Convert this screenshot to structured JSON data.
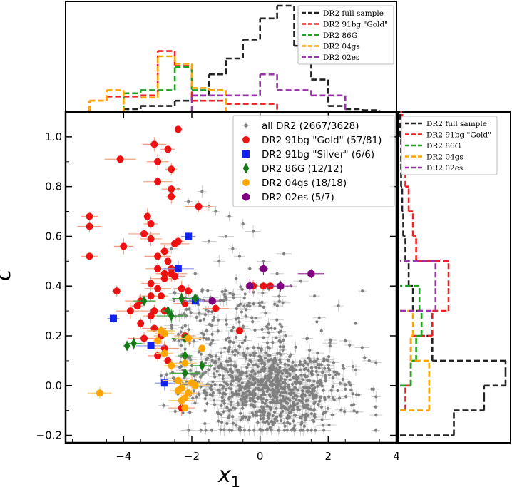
{
  "chart_data": [
    {
      "type": "scatter",
      "title": "",
      "xlabel": "x",
      "xlabel_sub": "1",
      "ylabel": "c",
      "xlim": [
        -5.7,
        4.0
      ],
      "ylim": [
        -0.23,
        1.1
      ],
      "xticks": [
        -4,
        -2,
        0,
        2,
        4
      ],
      "xtick_labels": [
        "−4",
        "−2",
        "0",
        "2",
        "4"
      ],
      "yticks": [
        -0.2,
        0.0,
        0.2,
        0.4,
        0.6,
        0.8,
        1.0
      ],
      "ytick_labels": [
        "−0.2",
        "0.0",
        "0.2",
        "0.4",
        "0.6",
        "0.8",
        "1.0"
      ],
      "legend_position": "top-right",
      "series": [
        {
          "name": "all DR2 (2667/3628)",
          "color": "#808080",
          "errcolor": "#c8c8c8",
          "marker": "dot",
          "cloud": {
            "n": 1100,
            "mean": [
              0.4,
              -0.02
            ],
            "sd": [
              1.1,
              0.09
            ]
          },
          "points": [
            [
              -2.1,
              0.74
            ],
            [
              -1.7,
              0.78
            ],
            [
              -1.5,
              0.72
            ],
            [
              -1.3,
              0.7
            ],
            [
              -2.4,
              0.79
            ],
            [
              -0.9,
              0.68
            ],
            [
              -0.5,
              0.65
            ],
            [
              -1.0,
              0.6
            ],
            [
              -0.2,
              0.62
            ],
            [
              -0.8,
              0.55
            ],
            [
              -1.5,
              0.58
            ],
            [
              -0.6,
              0.52
            ],
            [
              0.1,
              0.5
            ],
            [
              -0.3,
              0.47
            ],
            [
              -1.2,
              0.5
            ],
            [
              0.5,
              0.45
            ],
            [
              0.9,
              0.4
            ],
            [
              1.2,
              0.42
            ],
            [
              -0.1,
              0.4
            ],
            [
              1.6,
              0.36
            ],
            [
              2.3,
              0.32
            ],
            [
              3.0,
              0.38
            ],
            [
              2.8,
              0.25
            ],
            [
              1.8,
              0.22
            ],
            [
              2.5,
              0.18
            ],
            [
              3.2,
              0.1
            ],
            [
              -0.7,
              0.43
            ],
            [
              0.7,
              0.53
            ],
            [
              -1.9,
              0.45
            ],
            [
              -2.6,
              0.55
            ]
          ]
        },
        {
          "name": "DR2 91bg \"Gold\" (57/81)",
          "color": "#ee1111",
          "marker": "circle",
          "points": [
            [
              -2.4,
              1.03
            ],
            [
              -3.1,
              0.97
            ],
            [
              -2.7,
              0.95
            ],
            [
              -4.1,
              0.91
            ],
            [
              -3.0,
              0.9
            ],
            [
              -2.6,
              0.87
            ],
            [
              -3.0,
              0.82
            ],
            [
              -2.6,
              0.79
            ],
            [
              -2.6,
              0.76
            ],
            [
              -1.8,
              0.72
            ],
            [
              -5.0,
              0.68
            ],
            [
              -3.3,
              0.68
            ],
            [
              -5.0,
              0.64
            ],
            [
              -3.2,
              0.65
            ],
            [
              -3.4,
              0.61
            ],
            [
              -3.2,
              0.59
            ],
            [
              -2.4,
              0.58
            ],
            [
              -2.5,
              0.57
            ],
            [
              -4.0,
              0.56
            ],
            [
              -2.8,
              0.54
            ],
            [
              -3.0,
              0.52
            ],
            [
              -5.0,
              0.52
            ],
            [
              -2.7,
              0.5
            ],
            [
              -3.0,
              0.47
            ],
            [
              -2.6,
              0.47
            ],
            [
              -2.6,
              0.45
            ],
            [
              -2.5,
              0.44
            ],
            [
              -2.8,
              0.45
            ],
            [
              -2.8,
              0.43
            ],
            [
              -3.2,
              0.41
            ],
            [
              -4.2,
              0.38
            ],
            [
              -3.0,
              0.39
            ],
            [
              -2.3,
              0.39
            ],
            [
              -2.1,
              0.38
            ],
            [
              -3.2,
              0.36
            ],
            [
              -2.9,
              0.36
            ],
            [
              -3.5,
              0.34
            ],
            [
              -2.2,
              0.33
            ],
            [
              -3.6,
              0.32
            ],
            [
              -3.8,
              0.3
            ],
            [
              -3.1,
              0.3
            ],
            [
              -2.8,
              0.3
            ],
            [
              -1.3,
              0.31
            ],
            [
              -3.2,
              0.28
            ],
            [
              -3.5,
              0.25
            ],
            [
              -3.1,
              0.23
            ],
            [
              -2.9,
              0.2
            ],
            [
              -3.4,
              0.19
            ],
            [
              -2.2,
              0.2
            ],
            [
              -0.6,
              0.22
            ],
            [
              -2.8,
              0.15
            ],
            [
              -3.0,
              0.12
            ],
            [
              -2.7,
              0.1
            ],
            [
              -2.3,
              -0.09
            ],
            [
              -0.2,
              0.4
            ],
            [
              0.1,
              0.4
            ],
            [
              0.3,
              0.4
            ]
          ]
        },
        {
          "name": "DR2 91bg \"Silver\" (6/6)",
          "color": "#1122ee",
          "marker": "square",
          "points": [
            [
              -2.1,
              0.6
            ],
            [
              -2.4,
              0.47
            ],
            [
              -1.9,
              0.34
            ],
            [
              -4.3,
              0.27
            ],
            [
              -3.2,
              0.16
            ],
            [
              -2.8,
              0.01
            ]
          ]
        },
        {
          "name": "DR2 86G (12/12)",
          "color": "#157a15",
          "marker": "diamond",
          "points": [
            [
              -3.4,
              0.34
            ],
            [
              -2.7,
              0.3
            ],
            [
              -2.6,
              0.28
            ],
            [
              -2.3,
              0.35
            ],
            [
              -1.9,
              0.35
            ],
            [
              -2.2,
              0.19
            ],
            [
              -3.7,
              0.17
            ],
            [
              -3.9,
              0.16
            ],
            [
              -2.9,
              0.22
            ],
            [
              -2.2,
              0.12
            ],
            [
              -2.2,
              0.05
            ],
            [
              -1.7,
              0.08
            ]
          ]
        },
        {
          "name": "DR2 04gs (18/18)",
          "color": "#ffa500",
          "marker": "circle",
          "points": [
            [
              -2.9,
              0.22
            ],
            [
              -2.8,
              0.21
            ],
            [
              -3.0,
              0.18
            ],
            [
              -2.1,
              0.19
            ],
            [
              -2.8,
              0.13
            ],
            [
              -1.7,
              0.15
            ],
            [
              -2.2,
              0.09
            ],
            [
              -2.6,
              0.08
            ],
            [
              -2.4,
              0.02
            ],
            [
              -2.0,
              0.01
            ],
            [
              -2.3,
              -0.01
            ],
            [
              -1.9,
              0.0
            ],
            [
              -2.1,
              -0.03
            ],
            [
              -2.2,
              -0.05
            ],
            [
              -2.3,
              -0.06
            ],
            [
              -2.4,
              -0.02
            ],
            [
              -2.2,
              -0.09
            ],
            [
              -4.7,
              -0.03
            ]
          ]
        },
        {
          "name": "DR2 02es (5/7)",
          "color": "#800080",
          "marker": "hexagon",
          "points": [
            [
              0.1,
              0.47
            ],
            [
              1.5,
              0.45
            ],
            [
              -1.4,
              0.34
            ],
            [
              -0.3,
              0.4
            ],
            [
              0.6,
              0.4
            ]
          ]
        }
      ]
    },
    {
      "type": "histogram",
      "orientation": "vertical",
      "panel": "top (distribution of x1)",
      "bin_width": 0.5,
      "xlim": [
        -5.7,
        4.0
      ],
      "series": [
        {
          "name": "DR2 full sample",
          "color": "#222222",
          "bins": [
            -4.0,
            -3.5,
            -3.0,
            -2.5,
            -2.0,
            -1.5,
            -1.0,
            -0.5,
            0.0,
            0.5,
            1.0,
            1.5,
            2.0,
            2.5,
            3.0
          ],
          "heights": [
            0.02,
            0.05,
            0.05,
            0.1,
            0.15,
            0.35,
            0.5,
            0.68,
            0.88,
            1.0,
            0.62,
            0.3,
            0.05,
            0.02,
            0.01
          ]
        },
        {
          "name": "DR2 91bg \"Gold\"",
          "color": "#ee2222",
          "bins": [
            -5.0,
            -4.5,
            -4.0,
            -3.5,
            -3.0,
            -2.5,
            -2.0,
            -1.5,
            -1.0,
            -0.5,
            0.0
          ],
          "heights": [
            0.1,
            0.14,
            0.14,
            0.15,
            0.57,
            0.43,
            0.1,
            0.1,
            0.07,
            0.07,
            0.07
          ]
        },
        {
          "name": "DR2 86G",
          "color": "#22a022",
          "bins": [
            -4.0,
            -3.5,
            -3.0,
            -2.5,
            -2.0,
            -1.5
          ],
          "heights": [
            0.17,
            0.2,
            0.2,
            0.42,
            0.2,
            0.2
          ]
        },
        {
          "name": "DR2 04gs",
          "color": "#ffa500",
          "bins": [
            -5.0,
            -4.5,
            -3.5,
            -3.0,
            -2.5,
            -2.0,
            -1.5
          ],
          "heights": [
            0.1,
            0.2,
            0.13,
            0.52,
            0.45,
            0.22,
            0.2
          ]
        },
        {
          "name": "DR2 02es",
          "color": "#9933aa",
          "bins": [
            -2.0,
            -1.5,
            -1.0,
            -0.5,
            0.0,
            0.5,
            1.0,
            1.5,
            2.0
          ],
          "heights": [
            0.15,
            0.15,
            0.15,
            0.15,
            0.35,
            0.2,
            0.2,
            0.15,
            0.15
          ]
        }
      ]
    },
    {
      "type": "histogram",
      "orientation": "horizontal",
      "panel": "right (distribution of c)",
      "bin_width": 0.1,
      "ylim": [
        -0.23,
        1.1
      ],
      "series": [
        {
          "name": "DR2 full sample",
          "color": "#222222",
          "bins": [
            -0.2,
            -0.1,
            -0.05,
            0.0,
            0.05,
            0.1,
            0.2,
            0.3,
            0.4,
            0.5,
            0.6,
            0.7,
            0.8,
            0.9,
            1.0
          ],
          "heights": [
            0.5,
            0.78,
            0.78,
            0.98,
            0.98,
            0.3,
            0.2,
            0.12,
            0.08,
            0.05,
            0.03,
            0.02,
            0.01,
            0.01,
            0.0
          ]
        },
        {
          "name": "DR2 91bg \"Gold\"",
          "color": "#ee2222",
          "bins": [
            -0.1,
            0.0,
            0.1,
            0.2,
            0.3,
            0.4,
            0.5,
            0.6,
            0.7,
            0.8,
            0.9,
            1.0
          ],
          "heights": [
            0.05,
            0.1,
            0.1,
            0.3,
            0.45,
            0.45,
            0.15,
            0.12,
            0.08,
            0.05,
            0.04,
            0.02
          ]
        },
        {
          "name": "DR2 86G",
          "color": "#22a022",
          "bins": [
            0.0,
            0.1,
            0.2,
            0.3
          ],
          "heights": [
            0.1,
            0.15,
            0.2,
            0.18
          ]
        },
        {
          "name": "DR2 04gs",
          "color": "#ffa500",
          "bins": [
            -0.1,
            0.0,
            0.1,
            0.2
          ],
          "heights": [
            0.27,
            0.27,
            0.1,
            0.12
          ]
        },
        {
          "name": "DR2 02es",
          "color": "#9933aa",
          "bins": [
            0.3,
            0.4
          ],
          "heights": [
            0.33,
            0.33
          ]
        }
      ]
    }
  ],
  "legends": {
    "main": [
      {
        "label": "all DR2 (2667/3628)",
        "color": "#808080",
        "marker": "dot"
      },
      {
        "label": "DR2 91bg \"Gold\" (57/81)",
        "color": "#ee1111",
        "marker": "circle"
      },
      {
        "label": "DR2 91bg \"Silver\" (6/6)",
        "color": "#1122ee",
        "marker": "square"
      },
      {
        "label": "DR2 86G (12/12)",
        "color": "#157a15",
        "marker": "diamond"
      },
      {
        "label": "DR2 04gs (18/18)",
        "color": "#ffa500",
        "marker": "circle"
      },
      {
        "label": "DR2 02es (5/7)",
        "color": "#800080",
        "marker": "hexagon"
      }
    ],
    "hist": [
      {
        "label": "DR2 full sample",
        "color": "#222222"
      },
      {
        "label": "DR2 91bg \"Gold\"",
        "color": "#ee2222"
      },
      {
        "label": "DR2 86G",
        "color": "#22a022"
      },
      {
        "label": "DR2 04gs",
        "color": "#ffa500"
      },
      {
        "label": "DR2 02es",
        "color": "#9933aa"
      }
    ]
  }
}
